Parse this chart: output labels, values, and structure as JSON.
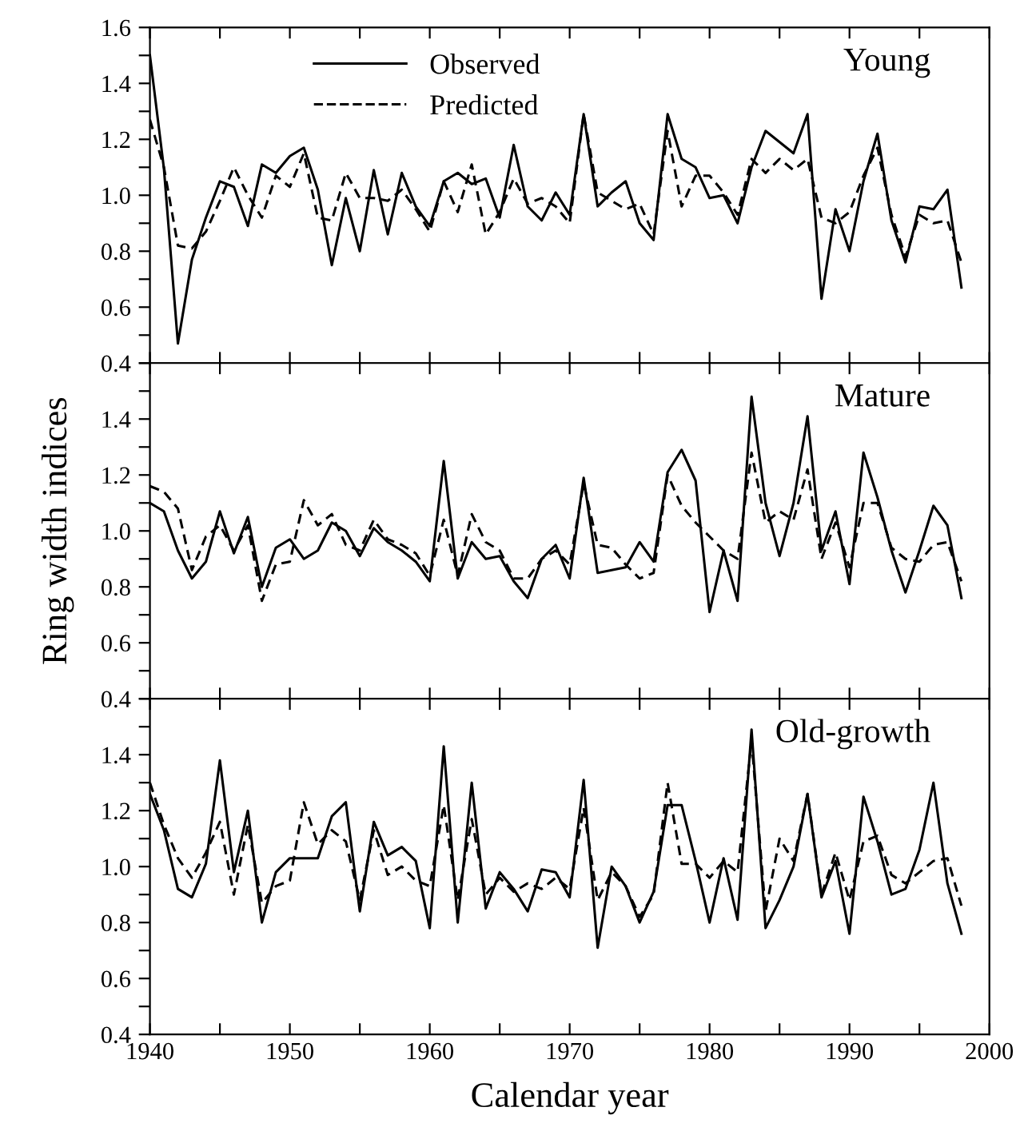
{
  "chart_data": [
    {
      "type": "line",
      "annotations": [
        "Young"
      ],
      "legend": "top",
      "tick_labels": "y",
      "grid": false,
      "x": [
        1940,
        1941,
        1942,
        1943,
        1944,
        1945,
        1946,
        1947,
        1948,
        1949,
        1950,
        1951,
        1952,
        1953,
        1954,
        1955,
        1956,
        1957,
        1958,
        1959,
        1960,
        1961,
        1962,
        1963,
        1964,
        1965,
        1966,
        1967,
        1968,
        1969,
        1970,
        1971,
        1972,
        1973,
        1974,
        1975,
        1976,
        1977,
        1978,
        1979,
        1980,
        1981,
        1982,
        1983,
        1984,
        1985,
        1986,
        1987,
        1988,
        1989,
        1990,
        1991,
        1992,
        1993,
        1994,
        1995,
        1996,
        1997,
        1998
      ],
      "xlim": [
        1940,
        2000
      ],
      "xticks": [
        1940,
        {
          "value": 1945,
          "label": null
        },
        1950,
        {
          "value": 1955,
          "label": null
        },
        1960,
        {
          "value": 1965,
          "label": null
        },
        1970,
        {
          "value": 1975,
          "label": null
        },
        1980,
        {
          "value": 1985,
          "label": null
        },
        1990,
        {
          "value": 1995,
          "label": null
        },
        2000
      ],
      "ylim": [
        0.4,
        1.6
      ],
      "yticks": [
        0.4,
        {
          "value": 0.5,
          "label": null
        },
        0.6,
        {
          "value": 0.7,
          "label": null
        },
        0.8,
        {
          "value": 0.9,
          "label": null
        },
        {
          "value": 1.0,
          "label": "1.0"
        },
        {
          "value": 1.1,
          "label": null
        },
        1.2,
        {
          "value": 1.3,
          "label": null
        },
        1.4,
        {
          "value": 1.5,
          "label": null
        },
        1.6
      ],
      "series": [
        {
          "name": "Observed",
          "color": "#000000",
          "line_style": "solid",
          "values": [
            1.5,
            1.095,
            0.47,
            0.77,
            0.92,
            1.05,
            1.03,
            0.89,
            1.11,
            1.08,
            1.14,
            1.17,
            1.02,
            0.75,
            0.99,
            0.8,
            1.09,
            0.86,
            1.08,
            0.96,
            0.89,
            1.05,
            1.08,
            1.04,
            1.06,
            0.92,
            1.18,
            0.96,
            0.91,
            1.01,
            0.93,
            1.29,
            0.96,
            1.01,
            1.05,
            0.9,
            0.84,
            1.29,
            1.13,
            1.1,
            0.99,
            1.0,
            0.9,
            1.1,
            1.23,
            1.19,
            1.15,
            1.29,
            0.63,
            0.95,
            0.8,
            1.05,
            1.22,
            0.91,
            0.76,
            0.96,
            0.95,
            1.02,
            0.67
          ]
        },
        {
          "name": "Predicted",
          "color": "#000000",
          "line_style": "dashed",
          "values": [
            1.27,
            1.1,
            0.82,
            0.81,
            0.87,
            0.98,
            1.1,
            1.0,
            0.92,
            1.07,
            1.03,
            1.15,
            0.92,
            0.91,
            1.08,
            0.99,
            0.99,
            0.98,
            1.02,
            0.95,
            0.87,
            1.05,
            0.94,
            1.11,
            0.86,
            0.94,
            1.06,
            0.97,
            0.99,
            0.96,
            0.9,
            1.29,
            1.01,
            0.98,
            0.95,
            0.97,
            0.86,
            1.23,
            0.96,
            1.07,
            1.07,
            1.01,
            0.93,
            1.13,
            1.08,
            1.13,
            1.09,
            1.13,
            0.92,
            0.9,
            0.94,
            1.07,
            1.17,
            0.93,
            0.78,
            0.93,
            0.9,
            0.91,
            0.76
          ]
        }
      ]
    },
    {
      "type": "line",
      "annotations": [
        "Mature"
      ],
      "tick_labels": "y",
      "grid": false,
      "ylabel": "Ring width indices",
      "x": [
        1940,
        1941,
        1942,
        1943,
        1944,
        1945,
        1946,
        1947,
        1948,
        1949,
        1950,
        1951,
        1952,
        1953,
        1954,
        1955,
        1956,
        1957,
        1958,
        1959,
        1960,
        1961,
        1962,
        1963,
        1964,
        1965,
        1966,
        1967,
        1968,
        1969,
        1970,
        1971,
        1972,
        1973,
        1974,
        1975,
        1976,
        1977,
        1978,
        1979,
        1980,
        1981,
        1982,
        1983,
        1984,
        1985,
        1986,
        1987,
        1988,
        1989,
        1990,
        1991,
        1992,
        1993,
        1994,
        1995,
        1996,
        1997,
        1998
      ],
      "xlim": [
        1940,
        2000
      ],
      "xticks": [
        1940,
        {
          "value": 1945,
          "label": null
        },
        1950,
        {
          "value": 1955,
          "label": null
        },
        1960,
        {
          "value": 1965,
          "label": null
        },
        1970,
        {
          "value": 1975,
          "label": null
        },
        1980,
        {
          "value": 1985,
          "label": null
        },
        1990,
        {
          "value": 1995,
          "label": null
        },
        2000
      ],
      "ylim": [
        0.4,
        1.6
      ],
      "yticks": [
        0.4,
        {
          "value": 0.5,
          "label": null
        },
        0.6,
        {
          "value": 0.7,
          "label": null
        },
        0.8,
        {
          "value": 0.9,
          "label": null
        },
        {
          "value": 1.0,
          "label": "1.0"
        },
        {
          "value": 1.1,
          "label": null
        },
        1.2,
        {
          "value": 1.3,
          "label": null
        },
        1.4,
        {
          "value": 1.5,
          "label": null
        },
        {
          "value": 1.6,
          "label": null
        }
      ],
      "series": [
        {
          "color": "#000000",
          "line_style": "solid",
          "values": [
            1.1,
            1.07,
            0.93,
            0.83,
            0.89,
            1.07,
            0.92,
            1.05,
            0.8,
            0.94,
            0.97,
            0.9,
            0.93,
            1.03,
            1.0,
            0.91,
            1.01,
            0.96,
            0.93,
            0.89,
            0.82,
            1.25,
            0.83,
            0.96,
            0.9,
            0.91,
            0.82,
            0.76,
            0.9,
            0.95,
            0.83,
            1.19,
            0.85,
            0.86,
            0.87,
            0.96,
            0.89,
            1.21,
            1.29,
            1.18,
            0.71,
            0.93,
            0.75,
            1.48,
            1.1,
            0.91,
            1.1,
            1.41,
            0.93,
            1.07,
            0.81,
            1.28,
            1.12,
            0.93,
            0.78,
            0.93,
            1.09,
            1.02,
            0.76
          ]
        },
        {
          "color": "#000000",
          "line_style": "dashed",
          "values": [
            1.16,
            1.14,
            1.08,
            0.86,
            0.98,
            1.02,
            0.93,
            1.02,
            0.75,
            0.88,
            0.89,
            1.11,
            1.02,
            1.06,
            0.95,
            0.93,
            1.04,
            0.97,
            0.95,
            0.92,
            0.84,
            1.04,
            0.84,
            1.06,
            0.96,
            0.93,
            0.83,
            0.83,
            0.9,
            0.93,
            0.88,
            1.17,
            0.95,
            0.94,
            0.88,
            0.83,
            0.85,
            1.2,
            1.09,
            1.03,
            0.98,
            0.93,
            0.9,
            1.28,
            1.03,
            1.07,
            1.04,
            1.22,
            0.9,
            1.03,
            0.87,
            1.1,
            1.1,
            0.94,
            0.9,
            0.89,
            0.95,
            0.96,
            0.82
          ]
        }
      ]
    },
    {
      "type": "line",
      "annotations": [
        "Old-growth"
      ],
      "grid": false,
      "xlabel": "Calendar year",
      "x": [
        1940,
        1941,
        1942,
        1943,
        1944,
        1945,
        1946,
        1947,
        1948,
        1949,
        1950,
        1951,
        1952,
        1953,
        1954,
        1955,
        1956,
        1957,
        1958,
        1959,
        1960,
        1961,
        1962,
        1963,
        1964,
        1965,
        1966,
        1967,
        1968,
        1969,
        1970,
        1971,
        1972,
        1973,
        1974,
        1975,
        1976,
        1977,
        1978,
        1979,
        1980,
        1981,
        1982,
        1983,
        1984,
        1985,
        1986,
        1987,
        1988,
        1989,
        1990,
        1991,
        1992,
        1993,
        1994,
        1995,
        1996,
        1997,
        1998
      ],
      "xlim": [
        1940,
        2000
      ],
      "xticks": [
        1940,
        {
          "value": 1945,
          "label": null
        },
        1950,
        {
          "value": 1955,
          "label": null
        },
        1960,
        {
          "value": 1965,
          "label": null
        },
        1970,
        {
          "value": 1975,
          "label": null
        },
        1980,
        {
          "value": 1985,
          "label": null
        },
        1990,
        {
          "value": 1995,
          "label": null
        },
        2000
      ],
      "ylim": [
        0.4,
        1.6
      ],
      "yticks": [
        0.4,
        {
          "value": 0.5,
          "label": null
        },
        0.6,
        {
          "value": 0.7,
          "label": null
        },
        0.8,
        {
          "value": 0.9,
          "label": null
        },
        {
          "value": 1.0,
          "label": "1.0"
        },
        {
          "value": 1.1,
          "label": null
        },
        1.2,
        {
          "value": 1.3,
          "label": null
        },
        1.4,
        {
          "value": 1.5,
          "label": null
        },
        {
          "value": 1.6,
          "label": null
        }
      ],
      "series": [
        {
          "color": "#000000",
          "line_style": "solid",
          "values": [
            1.26,
            1.13,
            0.92,
            0.89,
            1.01,
            1.38,
            0.98,
            1.2,
            0.8,
            0.98,
            1.03,
            1.03,
            1.03,
            1.18,
            1.23,
            0.84,
            1.16,
            1.04,
            1.07,
            1.02,
            0.78,
            1.43,
            0.8,
            1.3,
            0.85,
            0.98,
            0.92,
            0.84,
            0.99,
            0.98,
            0.89,
            1.31,
            0.71,
            1.0,
            0.93,
            0.8,
            0.91,
            1.22,
            1.22,
            1.02,
            0.8,
            1.03,
            0.81,
            1.49,
            0.78,
            0.88,
            1.0,
            1.26,
            0.89,
            1.02,
            0.76,
            1.25,
            1.09,
            0.9,
            0.92,
            1.06,
            1.3,
            0.94,
            0.76
          ]
        },
        {
          "color": "#000000",
          "line_style": "dashed",
          "values": [
            1.3,
            1.15,
            1.03,
            0.96,
            1.05,
            1.16,
            0.9,
            1.15,
            0.87,
            0.93,
            0.95,
            1.23,
            1.08,
            1.13,
            1.09,
            0.88,
            1.13,
            0.97,
            1.0,
            0.95,
            0.93,
            1.22,
            0.88,
            1.17,
            0.9,
            0.96,
            0.91,
            0.94,
            0.92,
            0.96,
            0.92,
            1.21,
            0.88,
            0.98,
            0.93,
            0.82,
            0.9,
            1.3,
            1.01,
            1.01,
            0.96,
            1.02,
            0.98,
            1.45,
            0.84,
            1.1,
            1.02,
            1.26,
            0.9,
            1.05,
            0.88,
            1.09,
            1.11,
            0.97,
            0.94,
            0.98,
            1.02,
            1.03,
            0.86
          ]
        }
      ]
    }
  ]
}
